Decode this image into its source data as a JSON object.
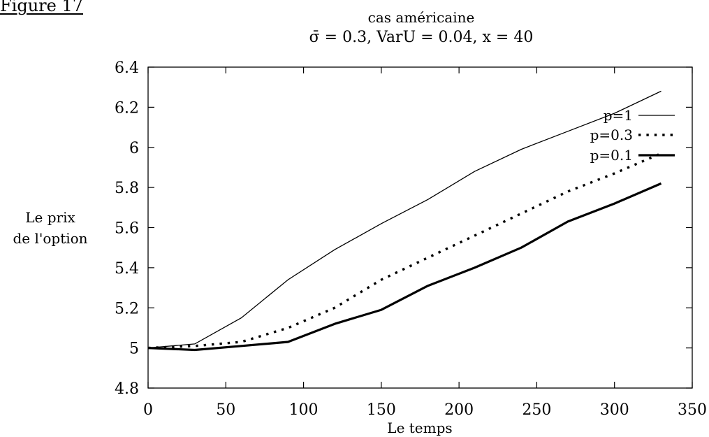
{
  "figure_label": "Figure 17",
  "chart_data": {
    "type": "line",
    "title": "cas américaine",
    "subtitle": "σ̄ = 0.3, VarU = 0.04, x = 40",
    "xlabel": "Le temps",
    "ylabel_line1": "Le prix",
    "ylabel_line2": "de l'option",
    "xlim": [
      0,
      350
    ],
    "ylim": [
      4.8,
      6.4
    ],
    "x_ticks": [
      0,
      50,
      100,
      150,
      200,
      250,
      300,
      350
    ],
    "y_ticks": [
      4.8,
      5,
      5.2,
      5.4,
      5.6,
      5.8,
      6,
      6.2,
      6.4
    ],
    "x_tick_labels": [
      "0",
      "50",
      "100",
      "150",
      "200",
      "250",
      "300",
      "350"
    ],
    "y_tick_labels": [
      "4.8",
      "5",
      "5.2",
      "5.4",
      "5.6",
      "5.8",
      "6",
      "6.2",
      "6.4"
    ],
    "grid": false,
    "legend_position": "top-right",
    "series": [
      {
        "name": "p=1",
        "style": "thin-solid",
        "x": [
          0,
          30,
          60,
          90,
          120,
          150,
          180,
          210,
          240,
          270,
          300,
          330
        ],
        "y": [
          5.0,
          5.02,
          5.15,
          5.34,
          5.49,
          5.62,
          5.74,
          5.88,
          5.99,
          6.08,
          6.17,
          6.28
        ]
      },
      {
        "name": "p=0.3",
        "style": "dotted",
        "x": [
          0,
          30,
          60,
          90,
          120,
          150,
          180,
          210,
          240,
          270,
          300,
          330
        ],
        "y": [
          5.0,
          5.01,
          5.03,
          5.1,
          5.2,
          5.34,
          5.45,
          5.56,
          5.67,
          5.78,
          5.87,
          5.97
        ]
      },
      {
        "name": "p=0.1",
        "style": "thick-solid",
        "x": [
          0,
          30,
          60,
          90,
          120,
          150,
          180,
          210,
          240,
          270,
          300,
          330
        ],
        "y": [
          5.0,
          4.99,
          5.01,
          5.03,
          5.12,
          5.19,
          5.31,
          5.4,
          5.5,
          5.63,
          5.72,
          5.82
        ]
      }
    ]
  }
}
